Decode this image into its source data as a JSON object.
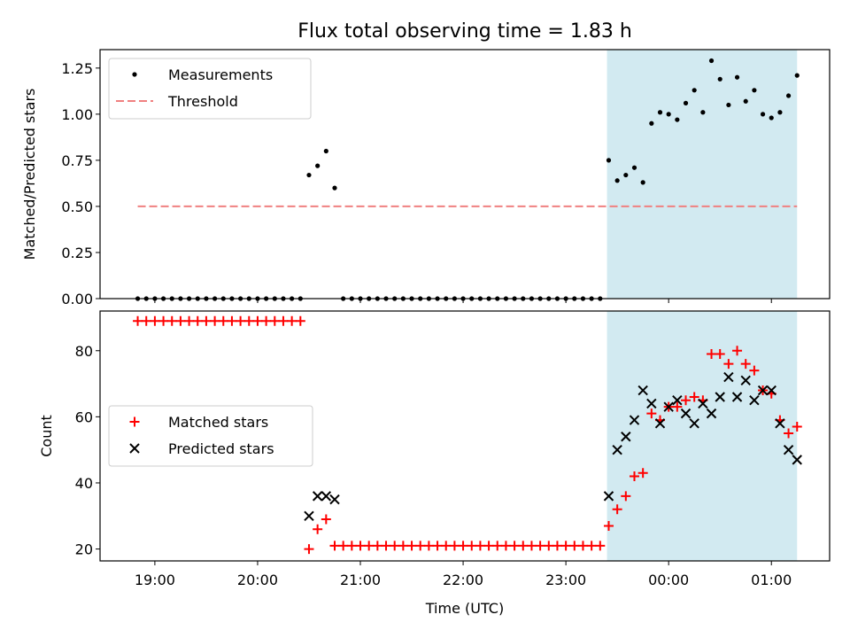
{
  "title": "Flux total observing time = 1.83 h",
  "colors": {
    "measurement": "#000000",
    "threshold": "#f08080",
    "matched": "#ff0000",
    "predicted": "#000000",
    "span": "#add8e6"
  },
  "chart_data": [
    {
      "type": "scatter",
      "ylabel": "Matched/Predicted stars",
      "ylim": [
        0,
        1.35
      ],
      "yticks": [
        0,
        0.25,
        0.5,
        0.75,
        1.0,
        1.25
      ],
      "yticklabels": [
        "0.00",
        "0.25",
        "0.50",
        "0.75",
        "1.00",
        "1.25"
      ],
      "xlim": [
        "18:28",
        "01:34"
      ],
      "highlight_span": [
        "23:24",
        "01:15"
      ],
      "legend": "upper-left",
      "series": [
        {
          "name": "Measurements",
          "marker": "dot",
          "points": [
            [
              "18:50",
              0
            ],
            [
              "18:55",
              0
            ],
            [
              "19:00",
              0
            ],
            [
              "19:05",
              0
            ],
            [
              "19:10",
              0
            ],
            [
              "19:15",
              0
            ],
            [
              "19:20",
              0
            ],
            [
              "19:25",
              0
            ],
            [
              "19:30",
              0
            ],
            [
              "19:35",
              0
            ],
            [
              "19:40",
              0
            ],
            [
              "19:45",
              0
            ],
            [
              "19:50",
              0
            ],
            [
              "19:55",
              0
            ],
            [
              "20:00",
              0
            ],
            [
              "20:05",
              0
            ],
            [
              "20:10",
              0
            ],
            [
              "20:15",
              0
            ],
            [
              "20:20",
              0
            ],
            [
              "20:25",
              0
            ],
            [
              "20:30",
              0.67
            ],
            [
              "20:35",
              0.72
            ],
            [
              "20:40",
              0.8
            ],
            [
              "20:45",
              0.6
            ],
            [
              "20:50",
              0
            ],
            [
              "20:55",
              0
            ],
            [
              "21:00",
              0
            ],
            [
              "21:05",
              0
            ],
            [
              "21:10",
              0
            ],
            [
              "21:15",
              0
            ],
            [
              "21:20",
              0
            ],
            [
              "21:25",
              0
            ],
            [
              "21:30",
              0
            ],
            [
              "21:35",
              0
            ],
            [
              "21:40",
              0
            ],
            [
              "21:45",
              0
            ],
            [
              "21:50",
              0
            ],
            [
              "21:55",
              0
            ],
            [
              "22:00",
              0
            ],
            [
              "22:05",
              0
            ],
            [
              "22:10",
              0
            ],
            [
              "22:15",
              0
            ],
            [
              "22:20",
              0
            ],
            [
              "22:25",
              0
            ],
            [
              "22:30",
              0
            ],
            [
              "22:35",
              0
            ],
            [
              "22:40",
              0
            ],
            [
              "22:45",
              0
            ],
            [
              "22:50",
              0
            ],
            [
              "22:55",
              0
            ],
            [
              "23:00",
              0
            ],
            [
              "23:05",
              0
            ],
            [
              "23:10",
              0
            ],
            [
              "23:15",
              0
            ],
            [
              "23:20",
              0
            ],
            [
              "23:25",
              0.75
            ],
            [
              "23:30",
              0.64
            ],
            [
              "23:35",
              0.67
            ],
            [
              "23:40",
              0.71
            ],
            [
              "23:45",
              0.63
            ],
            [
              "23:50",
              0.95
            ],
            [
              "23:55",
              1.01
            ],
            [
              "00:00",
              1.0
            ],
            [
              "00:05",
              0.97
            ],
            [
              "00:10",
              1.06
            ],
            [
              "00:15",
              1.13
            ],
            [
              "00:20",
              1.01
            ],
            [
              "00:25",
              1.29
            ],
            [
              "00:30",
              1.19
            ],
            [
              "00:35",
              1.05
            ],
            [
              "00:40",
              1.2
            ],
            [
              "00:45",
              1.07
            ],
            [
              "00:50",
              1.13
            ],
            [
              "00:55",
              1.0
            ],
            [
              "01:00",
              0.98
            ],
            [
              "01:05",
              1.01
            ],
            [
              "01:10",
              1.1
            ],
            [
              "01:15",
              1.21
            ]
          ]
        },
        {
          "name": "Threshold",
          "marker": "dashed-line",
          "points": [
            [
              "18:50",
              0.5
            ],
            [
              "01:15",
              0.5
            ]
          ]
        }
      ]
    },
    {
      "type": "scatter",
      "xlabel": "Time (UTC)",
      "ylabel": "Count",
      "ylim": [
        16.4,
        92
      ],
      "yticks": [
        20,
        40,
        60,
        80
      ],
      "yticklabels": [
        "20",
        "40",
        "60",
        "80"
      ],
      "xticks": [
        "19:00",
        "20:00",
        "21:00",
        "22:00",
        "23:00",
        "00:00",
        "01:00"
      ],
      "legend": "center-left",
      "series": [
        {
          "name": "Matched stars",
          "marker": "plus",
          "points": [
            [
              "18:50",
              89
            ],
            [
              "18:55",
              89
            ],
            [
              "19:00",
              89
            ],
            [
              "19:05",
              89
            ],
            [
              "19:10",
              89
            ],
            [
              "19:15",
              89
            ],
            [
              "19:20",
              89
            ],
            [
              "19:25",
              89
            ],
            [
              "19:30",
              89
            ],
            [
              "19:35",
              89
            ],
            [
              "19:40",
              89
            ],
            [
              "19:45",
              89
            ],
            [
              "19:50",
              89
            ],
            [
              "19:55",
              89
            ],
            [
              "20:00",
              89
            ],
            [
              "20:05",
              89
            ],
            [
              "20:10",
              89
            ],
            [
              "20:15",
              89
            ],
            [
              "20:20",
              89
            ],
            [
              "20:25",
              89
            ],
            [
              "20:30",
              20
            ],
            [
              "20:35",
              26
            ],
            [
              "20:40",
              29
            ],
            [
              "20:45",
              21
            ],
            [
              "20:50",
              21
            ],
            [
              "20:55",
              21
            ],
            [
              "21:00",
              21
            ],
            [
              "21:05",
              21
            ],
            [
              "21:10",
              21
            ],
            [
              "21:15",
              21
            ],
            [
              "21:20",
              21
            ],
            [
              "21:25",
              21
            ],
            [
              "21:30",
              21
            ],
            [
              "21:35",
              21
            ],
            [
              "21:40",
              21
            ],
            [
              "21:45",
              21
            ],
            [
              "21:50",
              21
            ],
            [
              "21:55",
              21
            ],
            [
              "22:00",
              21
            ],
            [
              "22:05",
              21
            ],
            [
              "22:10",
              21
            ],
            [
              "22:15",
              21
            ],
            [
              "22:20",
              21
            ],
            [
              "22:25",
              21
            ],
            [
              "22:30",
              21
            ],
            [
              "22:35",
              21
            ],
            [
              "22:40",
              21
            ],
            [
              "22:45",
              21
            ],
            [
              "22:50",
              21
            ],
            [
              "22:55",
              21
            ],
            [
              "23:00",
              21
            ],
            [
              "23:05",
              21
            ],
            [
              "23:10",
              21
            ],
            [
              "23:15",
              21
            ],
            [
              "23:20",
              21
            ],
            [
              "23:25",
              27
            ],
            [
              "23:30",
              32
            ],
            [
              "23:35",
              36
            ],
            [
              "23:40",
              42
            ],
            [
              "23:45",
              43
            ],
            [
              "23:50",
              61
            ],
            [
              "23:55",
              59
            ],
            [
              "00:00",
              63
            ],
            [
              "00:05",
              63
            ],
            [
              "00:10",
              65
            ],
            [
              "00:15",
              66
            ],
            [
              "00:20",
              65
            ],
            [
              "00:25",
              79
            ],
            [
              "00:30",
              79
            ],
            [
              "00:35",
              76
            ],
            [
              "00:40",
              80
            ],
            [
              "00:45",
              76
            ],
            [
              "00:50",
              74
            ],
            [
              "00:55",
              68
            ],
            [
              "01:00",
              67
            ],
            [
              "01:05",
              59
            ],
            [
              "01:10",
              55
            ],
            [
              "01:15",
              57
            ]
          ]
        },
        {
          "name": "Predicted stars",
          "marker": "x",
          "points": [
            [
              "20:30",
              30
            ],
            [
              "20:35",
              36
            ],
            [
              "20:40",
              36
            ],
            [
              "20:45",
              35
            ],
            [
              "23:25",
              36
            ],
            [
              "23:30",
              50
            ],
            [
              "23:35",
              54
            ],
            [
              "23:40",
              59
            ],
            [
              "23:45",
              68
            ],
            [
              "23:50",
              64
            ],
            [
              "23:55",
              58
            ],
            [
              "00:00",
              63
            ],
            [
              "00:05",
              65
            ],
            [
              "00:10",
              61
            ],
            [
              "00:15",
              58
            ],
            [
              "00:20",
              64
            ],
            [
              "00:25",
              61
            ],
            [
              "00:30",
              66
            ],
            [
              "00:35",
              72
            ],
            [
              "00:40",
              66
            ],
            [
              "00:45",
              71
            ],
            [
              "00:50",
              65
            ],
            [
              "00:55",
              68
            ],
            [
              "01:00",
              68
            ],
            [
              "01:05",
              58
            ],
            [
              "01:10",
              50
            ],
            [
              "01:15",
              47
            ]
          ]
        }
      ]
    }
  ]
}
